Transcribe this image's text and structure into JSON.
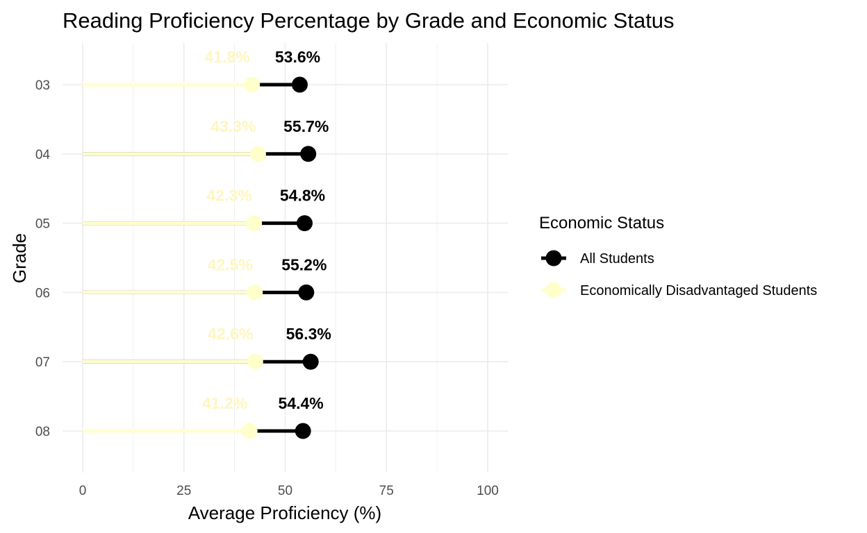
{
  "chart_data": {
    "type": "dumbbell",
    "title": "Reading Proficiency Percentage by Grade and Economic Status",
    "xlabel": "Average Proficiency (%)",
    "ylabel": "Grade",
    "xlim": [
      0,
      105
    ],
    "xticks": [
      0,
      25,
      50,
      75,
      100
    ],
    "xtick_labels": [
      "0",
      "25",
      "50",
      "75",
      "100"
    ],
    "categories": [
      "03",
      "04",
      "05",
      "06",
      "07",
      "08"
    ],
    "grid": true,
    "legend": {
      "title": "Economic Status",
      "placement": "right"
    },
    "series": [
      {
        "name": "All Students",
        "color": "#000000",
        "values": [
          53.6,
          55.7,
          54.8,
          55.2,
          56.3,
          54.4
        ],
        "labels": [
          "53.6%",
          "55.7%",
          "54.8%",
          "55.2%",
          "56.3%",
          "54.4%"
        ]
      },
      {
        "name": "Economically Disadvantaged Students",
        "color": "#FFFFCC",
        "values": [
          41.8,
          43.3,
          42.3,
          42.5,
          42.6,
          41.2
        ],
        "labels": [
          "41.8%",
          "43.3%",
          "42.3%",
          "42.5%",
          "42.6%",
          "41.2%"
        ]
      }
    ]
  }
}
